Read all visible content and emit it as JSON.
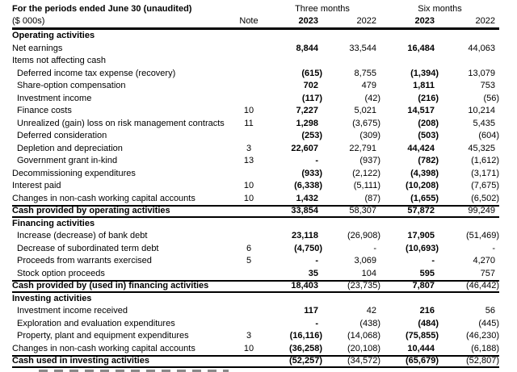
{
  "colors": {
    "text": "#000000",
    "background": "#ffffff",
    "rule": "#000000"
  },
  "header": {
    "title": "For the periods ended June 30 (unaudited)",
    "units": "($ 000s)",
    "note_label": "Note",
    "group_labels": [
      "Three months",
      "Six months"
    ],
    "year_cols": [
      "2023",
      "2022",
      "2023",
      "2022"
    ]
  },
  "rows": [
    {
      "style": "section",
      "label": "Operating activities",
      "note": "",
      "values": []
    },
    {
      "style": "item",
      "label": "Net earnings",
      "note": "",
      "values": [
        "8,844",
        "33,544",
        "16,484",
        "44,063"
      ]
    },
    {
      "style": "item",
      "label": "Items not affecting cash",
      "note": "",
      "values": []
    },
    {
      "style": "subitem",
      "label": "Deferred income tax expense (recovery)",
      "note": "",
      "values": [
        "(615)",
        "8,755",
        "(1,394)",
        "13,079"
      ]
    },
    {
      "style": "subitem",
      "label": "Share-option compensation",
      "note": "",
      "values": [
        "702",
        "479",
        "1,811",
        "753"
      ]
    },
    {
      "style": "subitem",
      "label": "Investment income",
      "note": "",
      "values": [
        "(117)",
        "(42)",
        "(216)",
        "(56)"
      ]
    },
    {
      "style": "subitem",
      "label": "Finance costs",
      "note": "10",
      "values": [
        "7,227",
        "5,021",
        "14,517",
        "10,214"
      ]
    },
    {
      "style": "subitem",
      "label": "Unrealized (gain) loss on risk management contracts",
      "note": "11",
      "values": [
        "1,298",
        "(3,675)",
        "(208)",
        "5,435"
      ]
    },
    {
      "style": "subitem",
      "label": "Deferred consideration",
      "note": "",
      "values": [
        "(253)",
        "(309)",
        "(503)",
        "(604)"
      ]
    },
    {
      "style": "subitem",
      "label": "Depletion and depreciation",
      "note": "3",
      "values": [
        "22,607",
        "22,791",
        "44,424",
        "45,325"
      ]
    },
    {
      "style": "subitem",
      "label": "Government grant in-kind",
      "note": "13",
      "values": [
        "-",
        "(937)",
        "(782)",
        "(1,612)"
      ]
    },
    {
      "style": "item",
      "label": "Decommissioning expenditures",
      "note": "",
      "values": [
        "(933)",
        "(2,122)",
        "(4,398)",
        "(3,171)"
      ]
    },
    {
      "style": "item",
      "label": "Interest paid",
      "note": "10",
      "values": [
        "(6,338)",
        "(5,111)",
        "(10,208)",
        "(7,675)"
      ]
    },
    {
      "style": "item",
      "label": "Changes in non-cash working capital accounts",
      "note": "10",
      "values": [
        "1,432",
        "(87)",
        "(1,655)",
        "(6,502)"
      ]
    },
    {
      "style": "total",
      "label": "Cash provided by operating activities",
      "note": "",
      "values": [
        "33,854",
        "58,307",
        "57,872",
        "99,249"
      ]
    },
    {
      "style": "section",
      "label": "Financing activities",
      "note": "",
      "values": []
    },
    {
      "style": "subitem",
      "label": "Increase (decrease) of bank debt",
      "note": "",
      "values": [
        "23,118",
        "(26,908)",
        "17,905",
        "(51,469)"
      ]
    },
    {
      "style": "subitem",
      "label": "Decrease of subordinated term debt",
      "note": "6",
      "values": [
        "(4,750)",
        "-",
        "(10,693)",
        "-"
      ]
    },
    {
      "style": "subitem",
      "label": "Proceeds from warrants exercised",
      "note": "5",
      "values": [
        "-",
        "3,069",
        "-",
        "4,270"
      ]
    },
    {
      "style": "subitem",
      "label": "Stock option proceeds",
      "note": "",
      "values": [
        "35",
        "104",
        "595",
        "757"
      ]
    },
    {
      "style": "total",
      "label": "Cash provided by (used in) financing activities",
      "note": "",
      "values": [
        "18,403",
        "(23,735)",
        "7,807",
        "(46,442)"
      ]
    },
    {
      "style": "section",
      "label": "Investing activities",
      "note": "",
      "values": []
    },
    {
      "style": "subitem",
      "label": "Investment income received",
      "note": "",
      "values": [
        "117",
        "42",
        "216",
        "56"
      ]
    },
    {
      "style": "subitem",
      "label": "Exploration and evaluation expenditures",
      "note": "",
      "values": [
        "-",
        "(438)",
        "(484)",
        "(445)"
      ]
    },
    {
      "style": "subitem",
      "label": "Property, plant and equipment expenditures",
      "note": "3",
      "values": [
        "(16,116)",
        "(14,068)",
        "(75,855)",
        "(46,230)"
      ]
    },
    {
      "style": "item",
      "label": "Changes in non-cash working capital accounts",
      "note": "10",
      "values": [
        "(36,258)",
        "(20,108)",
        "10,444",
        "(6,188)"
      ]
    },
    {
      "style": "total",
      "label": "Cash used in investing activities",
      "note": "",
      "values": [
        "(52,257)",
        "(34,572)",
        "(65,679)",
        "(52,807)"
      ]
    }
  ]
}
